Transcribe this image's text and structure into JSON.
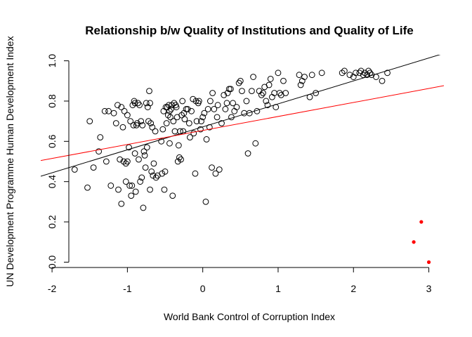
{
  "chart_data": {
    "type": "scatter",
    "title": "Relationship b/w Quality of Institutions and Quality of Life",
    "xlabel": "World Bank Control of Corruption Index",
    "ylabel": "UN Development Programme Human Development Index",
    "xlim": [
      -2.15,
      3.2
    ],
    "ylim": [
      -0.03,
      1.03
    ],
    "xticks": [
      -2,
      -1,
      0,
      1,
      2,
      3
    ],
    "yticks": [
      0.0,
      0.2,
      0.4,
      0.6,
      0.8,
      1.0
    ],
    "xtick_labels": [
      "-2",
      "-1",
      "0",
      "1",
      "2",
      "3"
    ],
    "ytick_labels": [
      "0.0",
      "0.2",
      "0.4",
      "0.6",
      "0.8",
      "1.0"
    ],
    "grid": false,
    "colors": {
      "points": "#000000",
      "highlight": "#ff0000",
      "fit_all": "#000000",
      "fit_with_outliers": "#ff0000"
    },
    "series": [
      {
        "marker": "open-circle",
        "points": [
          [
            -1.7,
            0.46
          ],
          [
            -1.53,
            0.37
          ],
          [
            -1.5,
            0.7
          ],
          [
            -1.45,
            0.47
          ],
          [
            -1.38,
            0.55
          ],
          [
            -1.36,
            0.62
          ],
          [
            -1.3,
            0.75
          ],
          [
            -1.28,
            0.5
          ],
          [
            -1.25,
            0.75
          ],
          [
            -1.22,
            0.38
          ],
          [
            -1.18,
            0.74
          ],
          [
            -1.15,
            0.69
          ],
          [
            -1.13,
            0.78
          ],
          [
            -1.12,
            0.36
          ],
          [
            -1.1,
            0.51
          ],
          [
            -1.08,
            0.77
          ],
          [
            -1.08,
            0.29
          ],
          [
            -1.06,
            0.67
          ],
          [
            -1.05,
            0.5
          ],
          [
            -1.04,
            0.75
          ],
          [
            -1.02,
            0.4
          ],
          [
            -1.02,
            0.49
          ],
          [
            -1.0,
            0.73
          ],
          [
            -1.0,
            0.5
          ],
          [
            -0.98,
            0.57
          ],
          [
            -0.97,
            0.38
          ],
          [
            -0.96,
            0.7
          ],
          [
            -0.95,
            0.33
          ],
          [
            -0.94,
            0.38
          ],
          [
            -0.93,
            0.78
          ],
          [
            -0.92,
            0.68
          ],
          [
            -0.91,
            0.8
          ],
          [
            -0.9,
            0.54
          ],
          [
            -0.9,
            0.79
          ],
          [
            -0.89,
            0.35
          ],
          [
            -0.88,
            0.68
          ],
          [
            -0.87,
            0.69
          ],
          [
            -0.86,
            0.79
          ],
          [
            -0.85,
            0.51
          ],
          [
            -0.84,
            0.78
          ],
          [
            -0.83,
            0.4
          ],
          [
            -0.82,
            0.7
          ],
          [
            -0.81,
            0.42
          ],
          [
            -0.8,
            0.68
          ],
          [
            -0.79,
            0.27
          ],
          [
            -0.78,
            0.55
          ],
          [
            -0.77,
            0.53
          ],
          [
            -0.76,
            0.47
          ],
          [
            -0.75,
            0.79
          ],
          [
            -0.74,
            0.57
          ],
          [
            -0.73,
            0.77
          ],
          [
            -0.72,
            0.7
          ],
          [
            -0.71,
            0.85
          ],
          [
            -0.7,
            0.36
          ],
          [
            -0.7,
            0.79
          ],
          [
            -0.69,
            0.69
          ],
          [
            -0.68,
            0.45
          ],
          [
            -0.67,
            0.67
          ],
          [
            -0.66,
            0.43
          ],
          [
            -0.65,
            0.49
          ],
          [
            -0.63,
            0.65
          ],
          [
            -0.62,
            0.42
          ],
          [
            -0.6,
            0.43
          ],
          [
            -0.55,
            0.6
          ],
          [
            -0.54,
            0.44
          ],
          [
            -0.53,
            0.66
          ],
          [
            -0.52,
            0.75
          ],
          [
            -0.51,
            0.36
          ],
          [
            -0.5,
            0.45
          ],
          [
            -0.49,
            0.77
          ],
          [
            -0.48,
            0.69
          ],
          [
            -0.47,
            0.77
          ],
          [
            -0.46,
            0.73
          ],
          [
            -0.45,
            0.78
          ],
          [
            -0.44,
            0.59
          ],
          [
            -0.44,
            0.75
          ],
          [
            -0.43,
            0.72
          ],
          [
            -0.42,
            0.76
          ],
          [
            -0.41,
            0.78
          ],
          [
            -0.4,
            0.33
          ],
          [
            -0.39,
            0.7
          ],
          [
            -0.38,
            0.79
          ],
          [
            -0.37,
            0.65
          ],
          [
            -0.36,
            0.78
          ],
          [
            -0.35,
            0.77
          ],
          [
            -0.34,
            0.72
          ],
          [
            -0.33,
            0.5
          ],
          [
            -0.32,
            0.58
          ],
          [
            -0.31,
            0.52
          ],
          [
            -0.3,
            0.65
          ],
          [
            -0.29,
            0.51
          ],
          [
            -0.28,
            0.73
          ],
          [
            -0.27,
            0.8
          ],
          [
            -0.26,
            0.65
          ],
          [
            -0.25,
            0.74
          ],
          [
            -0.24,
            0.71
          ],
          [
            -0.22,
            0.76
          ],
          [
            -0.2,
            0.76
          ],
          [
            -0.18,
            0.69
          ],
          [
            -0.17,
            0.62
          ],
          [
            -0.15,
            0.75
          ],
          [
            -0.13,
            0.81
          ],
          [
            -0.12,
            0.64
          ],
          [
            -0.1,
            0.44
          ],
          [
            -0.09,
            0.8
          ],
          [
            -0.08,
            0.7
          ],
          [
            -0.06,
            0.79
          ],
          [
            -0.05,
            0.8
          ],
          [
            -0.03,
            0.66
          ],
          [
            -0.02,
            0.7
          ],
          [
            0.0,
            0.72
          ],
          [
            0.02,
            0.74
          ],
          [
            0.04,
            0.3
          ],
          [
            0.05,
            0.61
          ],
          [
            0.07,
            0.76
          ],
          [
            0.09,
            0.67
          ],
          [
            0.1,
            0.8
          ],
          [
            0.12,
            0.47
          ],
          [
            0.13,
            0.84
          ],
          [
            0.15,
            0.76
          ],
          [
            0.17,
            0.44
          ],
          [
            0.19,
            0.72
          ],
          [
            0.2,
            0.78
          ],
          [
            0.22,
            0.46
          ],
          [
            0.25,
            0.69
          ],
          [
            0.28,
            0.83
          ],
          [
            0.3,
            0.76
          ],
          [
            0.32,
            0.79
          ],
          [
            0.33,
            0.84
          ],
          [
            0.35,
            0.86
          ],
          [
            0.37,
            0.86
          ],
          [
            0.38,
            0.72
          ],
          [
            0.4,
            0.79
          ],
          [
            0.42,
            0.75
          ],
          [
            0.45,
            0.77
          ],
          [
            0.48,
            0.89
          ],
          [
            0.5,
            0.9
          ],
          [
            0.52,
            0.85
          ],
          [
            0.55,
            0.74
          ],
          [
            0.58,
            0.8
          ],
          [
            0.6,
            0.54
          ],
          [
            0.62,
            0.74
          ],
          [
            0.65,
            0.85
          ],
          [
            0.67,
            0.92
          ],
          [
            0.7,
            0.59
          ],
          [
            0.72,
            0.75
          ],
          [
            0.75,
            0.85
          ],
          [
            0.78,
            0.83
          ],
          [
            0.8,
            0.84
          ],
          [
            0.82,
            0.87
          ],
          [
            0.84,
            0.8
          ],
          [
            0.86,
            0.78
          ],
          [
            0.88,
            0.88
          ],
          [
            0.9,
            0.91
          ],
          [
            0.92,
            0.82
          ],
          [
            0.95,
            0.84
          ],
          [
            0.97,
            0.77
          ],
          [
            1.0,
            0.94
          ],
          [
            1.02,
            0.84
          ],
          [
            1.04,
            0.83
          ],
          [
            1.07,
            0.9
          ],
          [
            1.1,
            0.84
          ],
          [
            1.28,
            0.93
          ],
          [
            1.3,
            0.88
          ],
          [
            1.32,
            0.9
          ],
          [
            1.35,
            0.92
          ],
          [
            1.42,
            0.82
          ],
          [
            1.45,
            0.93
          ],
          [
            1.5,
            0.84
          ],
          [
            1.58,
            0.94
          ],
          [
            1.85,
            0.94
          ],
          [
            1.88,
            0.95
          ],
          [
            1.95,
            0.93
          ],
          [
            2.0,
            0.92
          ],
          [
            2.03,
            0.94
          ],
          [
            2.08,
            0.94
          ],
          [
            2.1,
            0.95
          ],
          [
            2.13,
            0.93
          ],
          [
            2.15,
            0.94
          ],
          [
            2.18,
            0.93
          ],
          [
            2.2,
            0.95
          ],
          [
            2.22,
            0.94
          ],
          [
            2.24,
            0.93
          ],
          [
            2.3,
            0.92
          ],
          [
            2.38,
            0.9
          ],
          [
            2.45,
            0.94
          ]
        ]
      },
      {
        "marker": "filled-circle",
        "points": [
          [
            2.8,
            0.1
          ],
          [
            2.9,
            0.2
          ],
          [
            3.0,
            0.0
          ]
        ]
      }
    ],
    "lines": [
      {
        "stroke": "black",
        "intercept": 0.672,
        "slope": 0.114
      },
      {
        "stroke": "red",
        "intercept": 0.654,
        "slope": 0.0695
      }
    ]
  }
}
